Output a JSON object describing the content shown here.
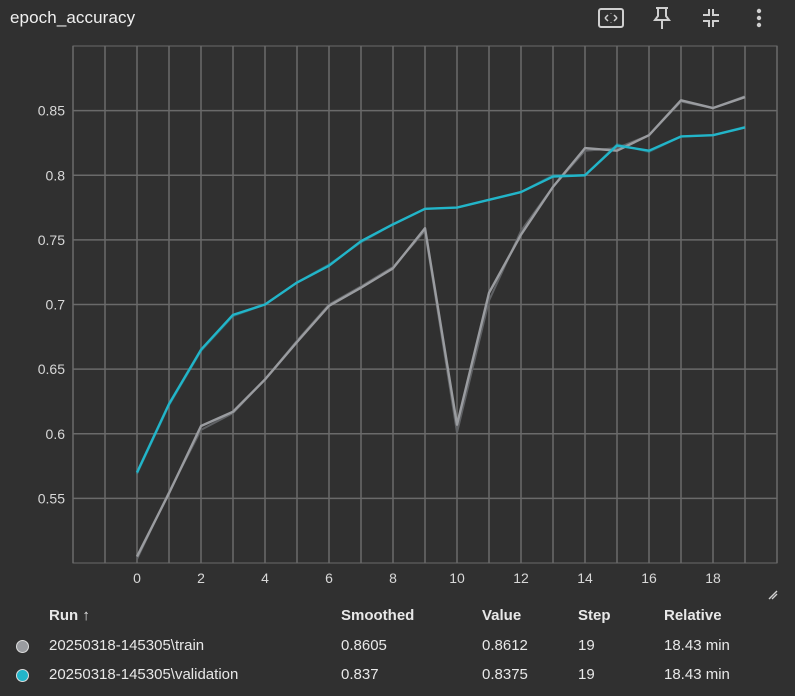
{
  "title": "epoch_accuracy",
  "toolbar": [
    {
      "icon": "fit-to-domain-icon"
    },
    {
      "icon": "pin-icon"
    },
    {
      "icon": "collapse-icon"
    },
    {
      "icon": "more-options-icon"
    }
  ],
  "colors": {
    "background": "#303030",
    "grid": "#6a6a6a",
    "train": "#9a9ca0",
    "train_raw": "#5f6164",
    "validation": "#22b5c9"
  },
  "chart_data": {
    "type": "line",
    "title": "epoch_accuracy",
    "xlabel": "",
    "ylabel": "",
    "xlim": [
      -2,
      20
    ],
    "ylim": [
      0.5,
      0.9
    ],
    "x_ticks": [
      0,
      2,
      4,
      6,
      8,
      10,
      12,
      14,
      16,
      18
    ],
    "y_ticks": [
      0.55,
      0.6,
      0.65,
      0.7,
      0.75,
      0.8,
      0.85
    ],
    "y_tick_labels": [
      "0.55",
      "0.6",
      "0.65",
      "0.7",
      "0.75",
      "0.8",
      "0.85"
    ],
    "grid": true,
    "series": [
      {
        "name": "20250318-145305\\train",
        "x": [
          0,
          1,
          2,
          3,
          4,
          5,
          6,
          7,
          8,
          9,
          10,
          11,
          12,
          13,
          14,
          15,
          16,
          17,
          18,
          19
        ],
        "smoothed": [
          0.505,
          0.554,
          0.606,
          0.617,
          0.642,
          0.671,
          0.699,
          0.713,
          0.728,
          0.759,
          0.607,
          0.709,
          0.754,
          0.791,
          0.821,
          0.819,
          0.831,
          0.858,
          0.852,
          0.8605
        ],
        "raw": [
          0.503,
          0.555,
          0.603,
          0.616,
          0.642,
          0.672,
          0.7,
          0.714,
          0.729,
          0.757,
          0.601,
          0.703,
          0.757,
          0.791,
          0.819,
          0.821,
          0.831,
          0.857,
          0.852,
          0.8612
        ]
      },
      {
        "name": "20250318-145305\\validation",
        "x": [
          0,
          1,
          2,
          3,
          4,
          5,
          6,
          7,
          8,
          9,
          10,
          11,
          12,
          13,
          14,
          15,
          16,
          17,
          18,
          19
        ],
        "smoothed": [
          0.57,
          0.623,
          0.665,
          0.692,
          0.7,
          0.717,
          0.73,
          0.749,
          0.762,
          0.774,
          0.775,
          0.781,
          0.787,
          0.799,
          0.8,
          0.823,
          0.819,
          0.83,
          0.831,
          0.837
        ],
        "raw": [
          0.569,
          0.622,
          0.664,
          0.691,
          0.7,
          0.717,
          0.731,
          0.748,
          0.762,
          0.774,
          0.775,
          0.781,
          0.787,
          0.8,
          0.8,
          0.824,
          0.818,
          0.83,
          0.831,
          0.8375
        ]
      }
    ]
  },
  "table": {
    "headers": {
      "run": "Run ↑",
      "smoothed": "Smoothed",
      "value": "Value",
      "step": "Step",
      "relative": "Relative"
    },
    "rows": [
      {
        "run": "20250318-145305\\train",
        "smoothed": "0.8605",
        "value": "0.8612",
        "step": "19",
        "relative": "18.43 min",
        "color": "#9a9ca0"
      },
      {
        "run": "20250318-145305\\validation",
        "smoothed": "0.837",
        "value": "0.8375",
        "step": "19",
        "relative": "18.43 min",
        "color": "#22b5c9"
      }
    ]
  }
}
